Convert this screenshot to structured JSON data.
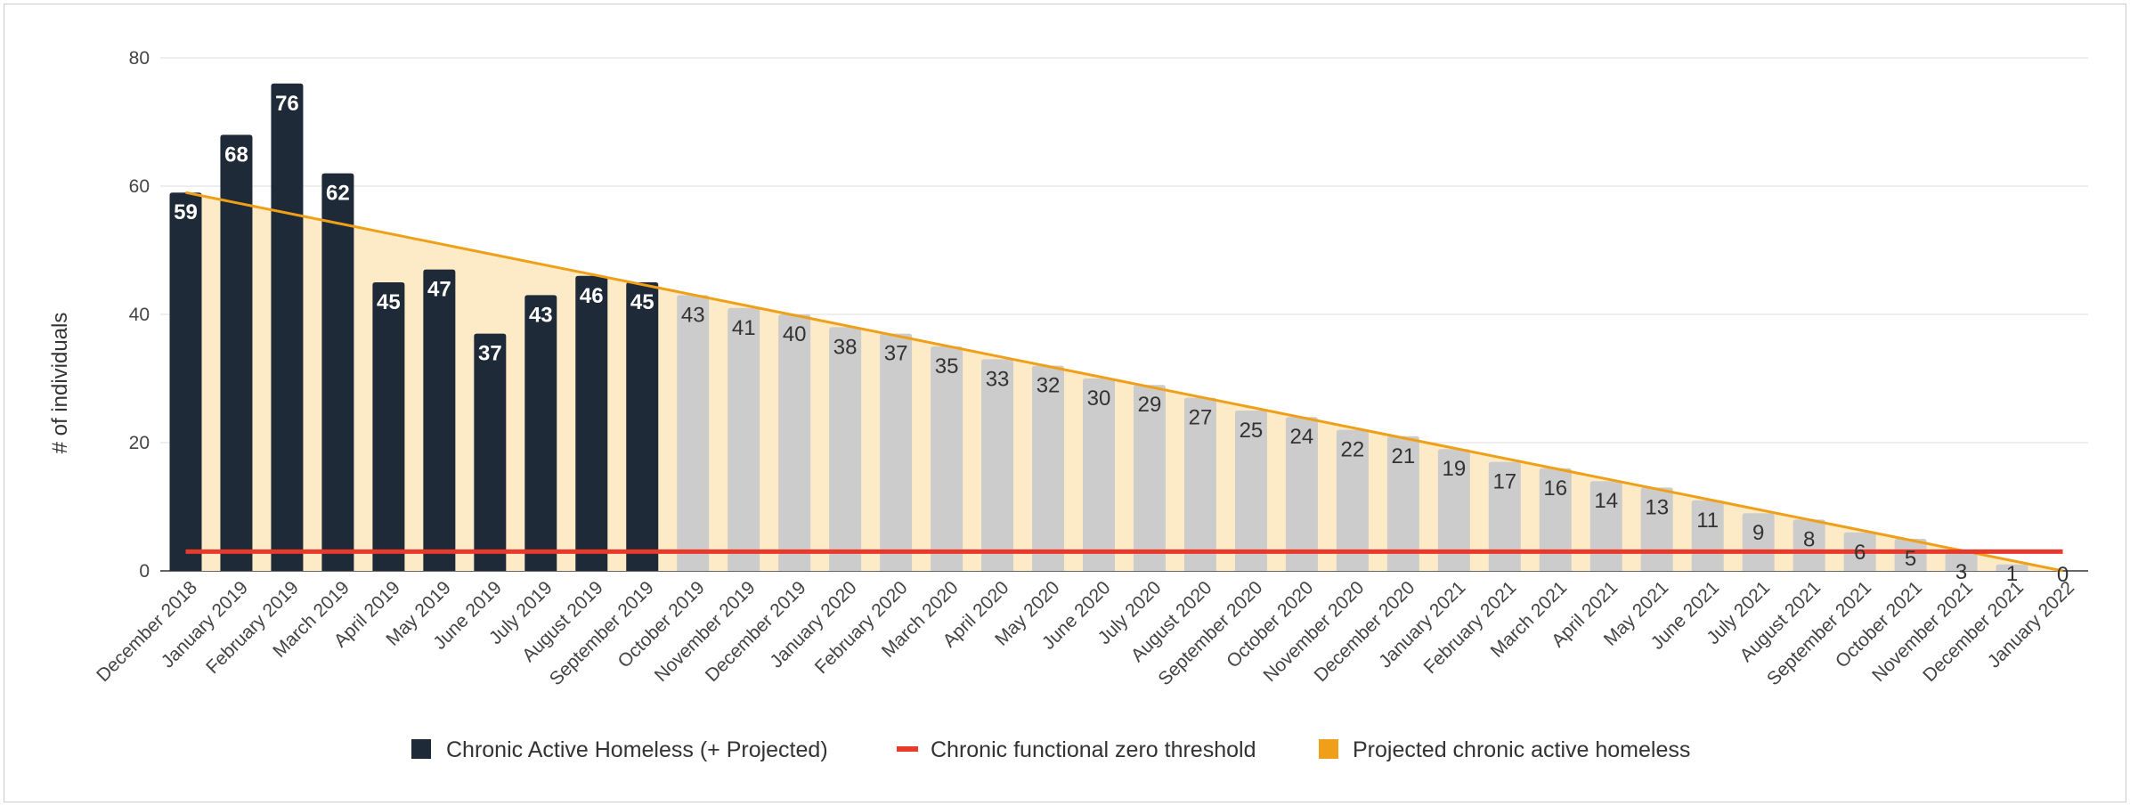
{
  "chart_data": {
    "type": "bar",
    "ylabel": "# of individuals",
    "xlabel": "",
    "ylim": [
      0,
      80
    ],
    "yticks": [
      0,
      20,
      40,
      60,
      80
    ],
    "grid": true,
    "legend_position": "bottom",
    "categories": [
      "December 2018",
      "January 2019",
      "February 2019",
      "March 2019",
      "April 2019",
      "May 2019",
      "June 2019",
      "July 2019",
      "August 2019",
      "September 2019",
      "October 2019",
      "November 2019",
      "December 2019",
      "January 2020",
      "February 2020",
      "March 2020",
      "April 2020",
      "May 2020",
      "June 2020",
      "July 2020",
      "August 2020",
      "September 2020",
      "October 2020",
      "November 2020",
      "December 2020",
      "January 2021",
      "February 2021",
      "March 2021",
      "April 2021",
      "May 2021",
      "June 2021",
      "July 2021",
      "August 2021",
      "September 2021",
      "October 2021",
      "November 2021",
      "December 2021",
      "January 2022"
    ],
    "actual_count": 10,
    "series": [
      {
        "name": "Chronic Active Homeless (+ Projected)",
        "kind": "bar",
        "color": "#1f2a38",
        "projected_color": "#cccccc",
        "values": [
          59,
          68,
          76,
          62,
          45,
          47,
          37,
          43,
          46,
          45,
          43,
          41,
          40,
          38,
          37,
          35,
          33,
          32,
          30,
          29,
          27,
          25,
          24,
          22,
          21,
          19,
          17,
          16,
          14,
          13,
          11,
          9,
          8,
          6,
          5,
          3,
          1,
          0
        ]
      },
      {
        "name": "Chronic functional zero threshold",
        "kind": "line",
        "color": "#e8392b",
        "value": 3
      },
      {
        "name": "Projected chronic active homeless",
        "kind": "area",
        "color": "#f0a018",
        "fill": "#fdebc8",
        "start": 59,
        "end": 0
      }
    ]
  }
}
